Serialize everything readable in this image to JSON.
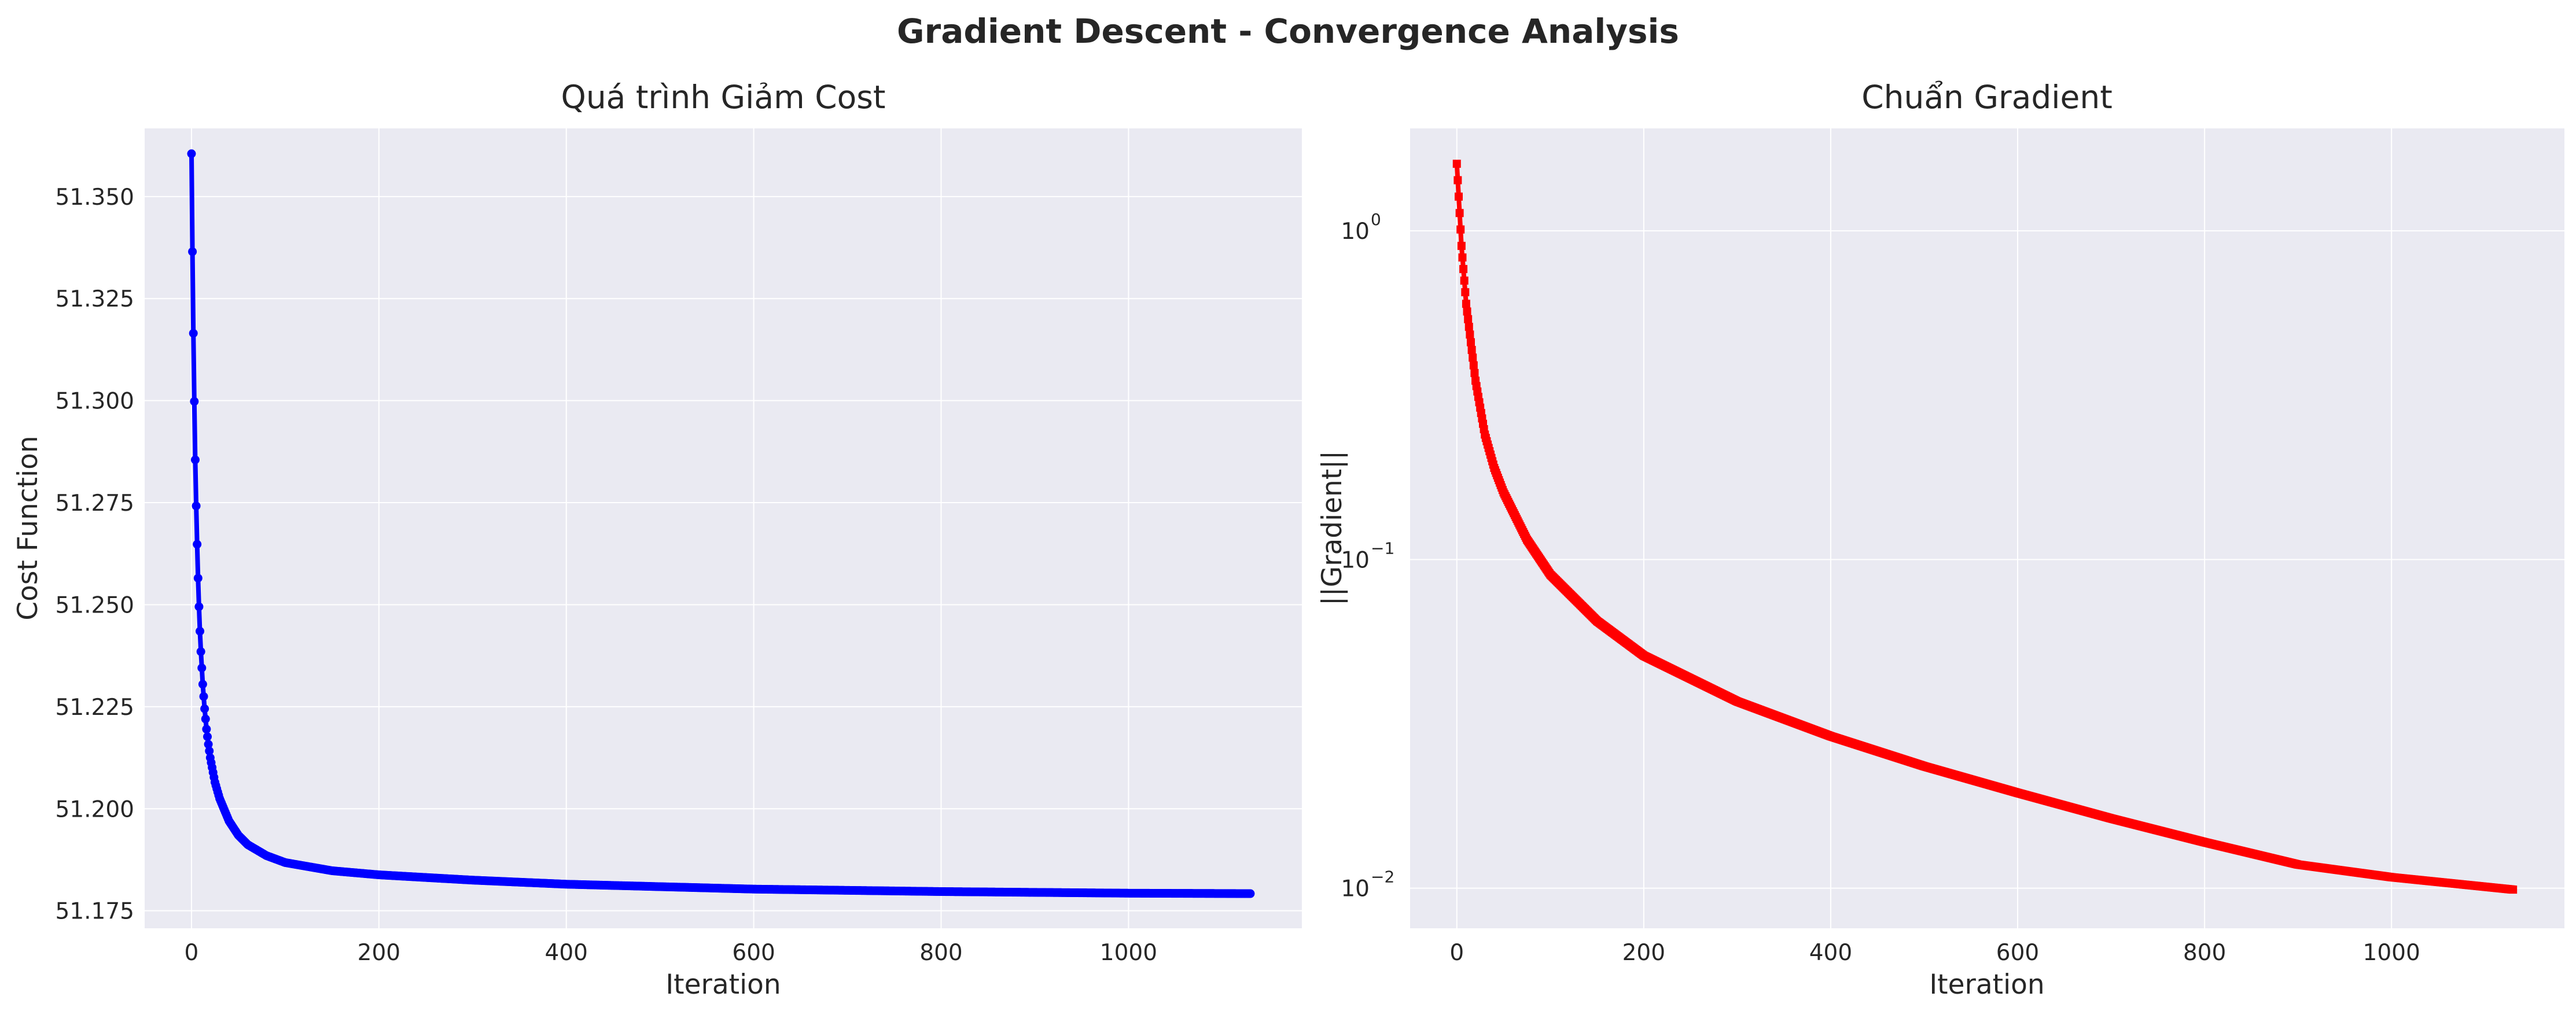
{
  "figure": {
    "suptitle": "Gradient Descent - Convergence Analysis"
  },
  "chart_data": [
    {
      "type": "line",
      "title": "Quá trình Giảm Cost",
      "xlabel": "Iteration",
      "ylabel": "Cost Function",
      "xlim": [
        -50,
        1185
      ],
      "ylim": [
        51.1707,
        51.3667
      ],
      "x_ticks": [
        0,
        200,
        400,
        600,
        800,
        1000
      ],
      "x_tick_labels": [
        "0",
        "200",
        "400",
        "600",
        "800",
        "1000"
      ],
      "y_ticks": [
        51.175,
        51.2,
        51.225,
        51.25,
        51.275,
        51.3,
        51.325,
        51.35
      ],
      "y_tick_labels": [
        "51.175",
        "51.200",
        "51.225",
        "51.250",
        "51.275",
        "51.300",
        "51.325",
        "51.350"
      ],
      "y_scale": "linear",
      "grid": true,
      "marker": "circle",
      "color": "#0000ff",
      "series": [
        {
          "iterations": 1130,
          "x": [
            0,
            1,
            2,
            3,
            4,
            5,
            6,
            7,
            8,
            9,
            10,
            12,
            14,
            16,
            18,
            20,
            25,
            30,
            40,
            50,
            60,
            80,
            100,
            150,
            200,
            300,
            400,
            600,
            800,
            1000,
            1130
          ],
          "y": [
            51.3605,
            51.3365,
            51.3165,
            51.2998,
            51.2855,
            51.2742,
            51.2648,
            51.2565,
            51.2495,
            51.2435,
            51.2385,
            51.2305,
            51.2245,
            51.2195,
            51.2158,
            51.2125,
            51.2065,
            51.2025,
            51.197,
            51.1935,
            51.1912,
            51.1885,
            51.1868,
            51.1848,
            51.1838,
            51.1825,
            51.1815,
            51.1803,
            51.1797,
            51.1793,
            51.1792
          ]
        }
      ]
    },
    {
      "type": "line",
      "title": "Chuẩn Gradient",
      "xlabel": "Iteration",
      "ylabel": "||Gradient||",
      "xlim": [
        -50,
        1185
      ],
      "ylim": [
        0.00755,
        2.05
      ],
      "x_ticks": [
        0,
        200,
        400,
        600,
        800,
        1000
      ],
      "x_tick_labels": [
        "0",
        "200",
        "400",
        "600",
        "800",
        "1000"
      ],
      "y_ticks": [
        0.01,
        0.1,
        1
      ],
      "y_tick_labels": [
        [
          "10",
          "−2"
        ],
        [
          "10",
          "−1"
        ],
        [
          "10",
          "0"
        ]
      ],
      "y_scale": "log",
      "grid": true,
      "marker": "square",
      "color": "#ff0000",
      "series": [
        {
          "iterations": 1130,
          "x": [
            0,
            5,
            10,
            20,
            30,
            40,
            50,
            75,
            100,
            150,
            200,
            300,
            400,
            500,
            600,
            700,
            800,
            900,
            1000,
            1130
          ],
          "y": [
            1.6,
            0.9,
            0.6,
            0.35,
            0.24,
            0.19,
            0.16,
            0.115,
            0.09,
            0.065,
            0.051,
            0.037,
            0.029,
            0.0235,
            0.0195,
            0.0163,
            0.0138,
            0.0118,
            0.0108,
            0.0099
          ]
        }
      ]
    }
  ]
}
